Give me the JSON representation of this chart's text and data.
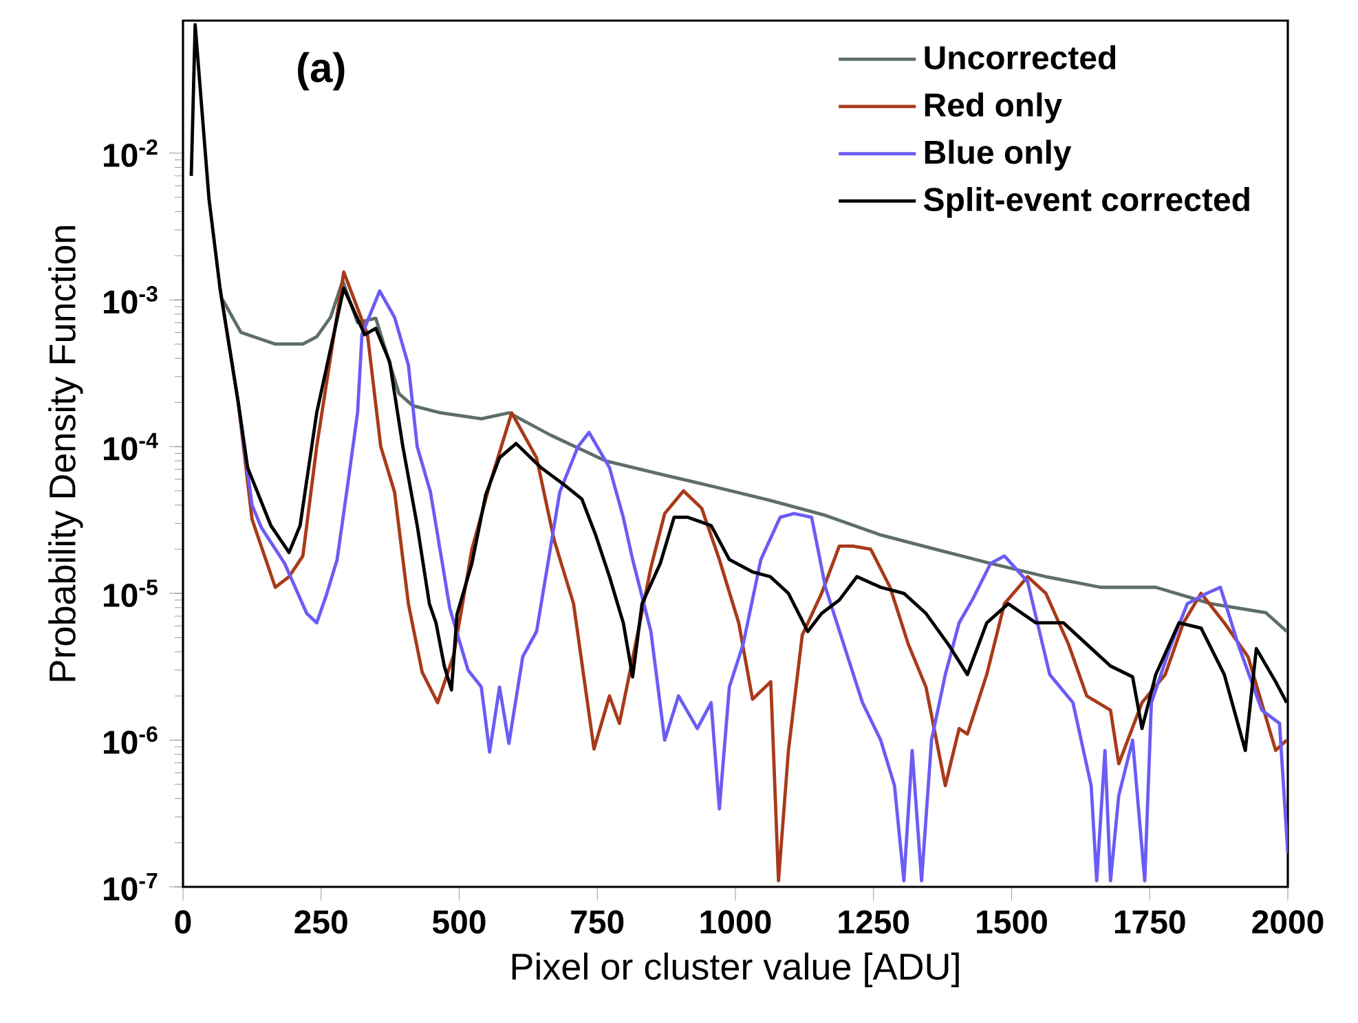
{
  "chart_data": {
    "type": "line",
    "xlabel": "Pixel or cluster value [ADU]",
    "ylabel": "Probability Density Function",
    "annotations": [
      "(a)"
    ],
    "log": "y",
    "legend": "top right",
    "xlim": [
      0,
      2000
    ],
    "ylim": [
      1e-07,
      0.08
    ],
    "xticks": [
      0,
      250,
      500,
      750,
      1000,
      1250,
      1500,
      1750,
      2000
    ],
    "yticks": [
      {
        "value": 1e-07,
        "label": "10$^{-7}$"
      },
      {
        "value": 1e-06,
        "label": "10$^{-6}$"
      },
      {
        "value": 1e-05,
        "label": "10$^{-5}$"
      },
      {
        "value": 0.0001,
        "label": "10$^{-4}$"
      },
      {
        "value": 0.001,
        "label": "10$^{-3}$"
      },
      {
        "value": 0.01,
        "label": "10$^{-2}$"
      }
    ],
    "series": [
      {
        "name": "Uncorrected",
        "color": "#5e6e69",
        "x": [
          72,
          105,
          167,
          217,
          242,
          267,
          289,
          316,
          349,
          391,
          416,
          466,
          540,
          590,
          665,
          765,
          864,
          964,
          1063,
          1163,
          1263,
          1362,
          1462,
          1562,
          1661,
          1761,
          1861,
          1960,
          1998
        ],
        "values": [
          0.001,
          0.0006,
          0.0005,
          0.0005,
          0.00056,
          0.00076,
          0.00135,
          0.0007,
          0.00075,
          0.00023,
          0.00019,
          0.00017,
          0.000155,
          0.00017,
          0.00012,
          8e-05,
          6.5e-05,
          5.3e-05,
          4.3e-05,
          3.4e-05,
          2.5e-05,
          2e-05,
          1.6e-05,
          1.3e-05,
          1.1e-05,
          1.1e-05,
          8.5e-06,
          7.4e-06,
          5.5e-06
        ]
      },
      {
        "name": "Red only",
        "color": "#a83a1a",
        "x": [
          67,
          100,
          125,
          167,
          192,
          217,
          242,
          291,
          334,
          358,
          383,
          408,
          433,
          461,
          490,
          523,
          558,
          595,
          640,
          672,
          707,
          744,
          772,
          790,
          814,
          847,
          872,
          906,
          939,
          971,
          1006,
          1031,
          1064,
          1078,
          1096,
          1121,
          1156,
          1188,
          1213,
          1245,
          1280,
          1313,
          1345,
          1380,
          1405,
          1420,
          1455,
          1487,
          1529,
          1562,
          1603,
          1636,
          1679,
          1694,
          1736,
          1778,
          1811,
          1843,
          1885,
          1928,
          1978,
          1998
        ],
        "values": [
          0.0012,
          0.0002,
          3.2e-05,
          1.1e-05,
          1.3e-05,
          1.8e-05,
          0.0001,
          0.00155,
          0.00058,
          0.0001,
          4.9e-05,
          8.5e-06,
          2.9e-06,
          1.8e-06,
          3.8e-06,
          2e-05,
          6e-05,
          0.00017,
          8.4e-05,
          2.3e-05,
          8.5e-06,
          8.7e-07,
          2e-06,
          1.3e-06,
          3.6e-06,
          1.5e-05,
          3.5e-05,
          5e-05,
          3.8e-05,
          1.7e-05,
          6.3e-06,
          1.9e-06,
          2.5e-06,
          1.1e-07,
          8.5e-07,
          5.2e-06,
          1e-05,
          2.1e-05,
          2.1e-05,
          2e-05,
          1.1e-05,
          4.5e-06,
          2.3e-06,
          4.9e-07,
          1.2e-06,
          1.1e-06,
          2.8e-06,
          8.5e-06,
          1.3e-05,
          1e-05,
          4.5e-06,
          2e-06,
          1.6e-06,
          6.9e-07,
          1.8e-06,
          2.8e-06,
          6.3e-06,
          1e-05,
          6.3e-06,
          3.7e-06,
          8.5e-07,
          1e-06
        ]
      },
      {
        "name": "Blue only",
        "color": "#6b5cf5",
        "x": [
          100,
          125,
          142,
          184,
          224,
          242,
          259,
          279,
          299,
          316,
          324,
          356,
          383,
          408,
          424,
          448,
          483,
          516,
          540,
          555,
          573,
          590,
          615,
          640,
          658,
          682,
          715,
          735,
          772,
          797,
          814,
          847,
          872,
          897,
          931,
          956,
          971,
          989,
          1014,
          1046,
          1081,
          1106,
          1138,
          1163,
          1196,
          1230,
          1263,
          1288,
          1305,
          1320,
          1337,
          1355,
          1380,
          1405,
          1430,
          1462,
          1487,
          1529,
          1569,
          1611,
          1644,
          1654,
          1669,
          1679,
          1694,
          1719,
          1741,
          1753,
          1786,
          1818,
          1853,
          1878,
          1910,
          1953,
          1985,
          2000
        ],
        "values": [
          0.0002,
          4e-05,
          2.8e-05,
          1.6e-05,
          7.3e-06,
          6.3e-06,
          9.6e-06,
          1.7e-05,
          5.8e-05,
          0.00017,
          0.00058,
          0.00115,
          0.00076,
          0.00036,
          0.0001,
          4.9e-05,
          7.9e-06,
          3e-06,
          2.3e-06,
          8.3e-07,
          2.3e-06,
          9.5e-07,
          3.7e-06,
          5.5e-06,
          1.4e-05,
          4.9e-05,
          0.0001,
          0.000125,
          7.2e-05,
          3.3e-05,
          1.7e-05,
          5.5e-06,
          1e-06,
          2e-06,
          1.2e-06,
          1.8e-06,
          3.4e-07,
          2.3e-06,
          4.5e-06,
          1.7e-05,
          3.3e-05,
          3.5e-05,
          3.3e-05,
          1.1e-05,
          4.5e-06,
          1.8e-06,
          1e-06,
          4.9e-07,
          1.1e-07,
          8.5e-07,
          1.1e-07,
          1e-06,
          2.8e-06,
          6.3e-06,
          9.2e-06,
          1.6e-05,
          1.8e-05,
          1.2e-05,
          2.8e-06,
          1.8e-06,
          4.9e-07,
          1.1e-07,
          8.5e-07,
          1.1e-07,
          4.2e-07,
          1e-06,
          1.1e-07,
          1.8e-06,
          4.2e-06,
          8.5e-06,
          1e-05,
          1.1e-05,
          4.5e-06,
          1.6e-06,
          1.3e-06,
          1.7e-07
        ]
      },
      {
        "name": "Split-event corrected",
        "color": "#000000",
        "x": [
          15,
          22,
          47,
          67,
          100,
          117,
          159,
          192,
          212,
          242,
          291,
          329,
          349,
          374,
          398,
          424,
          446,
          458,
          473,
          486,
          496,
          523,
          548,
          573,
          603,
          648,
          690,
          722,
          747,
          772,
          797,
          814,
          831,
          864,
          889,
          914,
          956,
          989,
          1031,
          1063,
          1096,
          1131,
          1156,
          1188,
          1220,
          1263,
          1305,
          1345,
          1387,
          1420,
          1455,
          1494,
          1544,
          1594,
          1636,
          1679,
          1719,
          1736,
          1761,
          1803,
          1843,
          1885,
          1923,
          1943,
          1978,
          1998
        ],
        "values": [
          0.007,
          0.075,
          0.0049,
          0.0012,
          0.0002,
          7.2e-05,
          2.9e-05,
          1.9e-05,
          2.9e-05,
          0.00017,
          0.0012,
          0.00058,
          0.00064,
          0.00038,
          0.0001,
          2.9e-05,
          8.5e-06,
          6.3e-06,
          3.2e-06,
          2.2e-06,
          7.2e-06,
          1.6e-05,
          4.7e-05,
          8.4e-05,
          0.000105,
          7.2e-05,
          5.5e-05,
          4.4e-05,
          2.5e-05,
          1.3e-05,
          6.3e-06,
          2.7e-06,
          8.5e-06,
          1.6e-05,
          3.3e-05,
          3.3e-05,
          2.9e-05,
          1.7e-05,
          1.4e-05,
          1.3e-05,
          1e-05,
          5.5e-06,
          7.3e-06,
          9e-06,
          1.3e-05,
          1.1e-05,
          1e-05,
          7.3e-06,
          4.4e-06,
          2.8e-06,
          6.3e-06,
          8.5e-06,
          6.3e-06,
          6.3e-06,
          4.5e-06,
          3.2e-06,
          2.7e-06,
          1.2e-06,
          2.8e-06,
          6.3e-06,
          5.8e-06,
          2.8e-06,
          8.5e-07,
          4.2e-06,
          2.5e-06,
          1.8e-06
        ]
      }
    ]
  }
}
